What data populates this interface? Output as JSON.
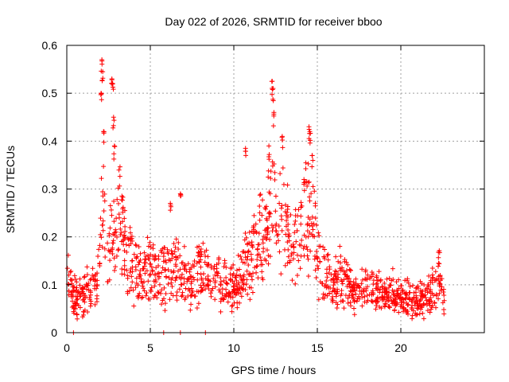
{
  "chart_data": {
    "type": "scatter",
    "title": "Day 022 of 2026, SRMTID for receiver bboo",
    "xlabel": "GPS time / hours",
    "ylabel": "SRMTID / TECUs",
    "xlim": [
      0,
      25
    ],
    "ylim": [
      0,
      0.6
    ],
    "xticks": [
      0,
      5,
      10,
      15,
      20
    ],
    "yticks": [
      0,
      0.1,
      0.2,
      0.3,
      0.4,
      0.5,
      0.6
    ],
    "ytick_labels": [
      "0",
      "0.1",
      "0.2",
      "0.3",
      "0.4",
      "0.5",
      "0.6"
    ],
    "grid": true,
    "marker": "+",
    "color": "#ff0000",
    "series": [
      {
        "name": "SRMTID",
        "profile": {
          "x": [
            0.0,
            0.3,
            0.6,
            0.9,
            1.2,
            1.5,
            1.8,
            2.0,
            2.2,
            2.4,
            2.6,
            2.8,
            3.0,
            3.2,
            3.4,
            3.6,
            3.8,
            4.0,
            4.5,
            5.0,
            5.5,
            6.0,
            6.5,
            7.0,
            7.5,
            8.0,
            8.5,
            9.0,
            9.5,
            10.0,
            10.5,
            11.0,
            11.5,
            12.0,
            12.3,
            12.6,
            13.0,
            13.4,
            13.8,
            14.2,
            14.6,
            15.0,
            15.5,
            16.0,
            16.5,
            17.0,
            17.5,
            18.0,
            18.5,
            19.0,
            19.5,
            20.0,
            20.5,
            21.0,
            21.5,
            22.0,
            22.3,
            22.6
          ],
          "y": [
            0.11,
            0.085,
            0.07,
            0.075,
            0.085,
            0.09,
            0.1,
            0.18,
            0.32,
            0.19,
            0.18,
            0.24,
            0.22,
            0.26,
            0.17,
            0.16,
            0.15,
            0.14,
            0.11,
            0.13,
            0.12,
            0.12,
            0.13,
            0.11,
            0.1,
            0.13,
            0.12,
            0.11,
            0.1,
            0.09,
            0.13,
            0.15,
            0.2,
            0.22,
            0.27,
            0.25,
            0.24,
            0.2,
            0.19,
            0.23,
            0.26,
            0.16,
            0.12,
            0.1,
            0.12,
            0.09,
            0.08,
            0.1,
            0.09,
            0.08,
            0.085,
            0.07,
            0.075,
            0.065,
            0.07,
            0.1,
            0.12,
            0.06
          ]
        },
        "spikes": [
          {
            "x": 2.1,
            "y": 0.57
          },
          {
            "x": 2.15,
            "y": 0.545
          },
          {
            "x": 2.7,
            "y": 0.53
          },
          {
            "x": 2.75,
            "y": 0.52
          },
          {
            "x": 2.8,
            "y": 0.45
          },
          {
            "x": 2.85,
            "y": 0.39
          },
          {
            "x": 2.05,
            "y": 0.5
          },
          {
            "x": 2.2,
            "y": 0.42
          },
          {
            "x": 12.3,
            "y": 0.525
          },
          {
            "x": 12.35,
            "y": 0.51
          },
          {
            "x": 12.4,
            "y": 0.46
          },
          {
            "x": 12.1,
            "y": 0.39
          },
          {
            "x": 12.9,
            "y": 0.41
          },
          {
            "x": 14.5,
            "y": 0.43
          },
          {
            "x": 14.55,
            "y": 0.42
          },
          {
            "x": 14.7,
            "y": 0.37
          },
          {
            "x": 14.2,
            "y": 0.32
          },
          {
            "x": 10.7,
            "y": 0.385
          },
          {
            "x": 6.8,
            "y": 0.29
          },
          {
            "x": 6.2,
            "y": 0.27
          }
        ],
        "zeros": [
          0.4,
          5.8,
          6.8,
          8.3
        ],
        "point_count": 1400
      }
    ]
  }
}
